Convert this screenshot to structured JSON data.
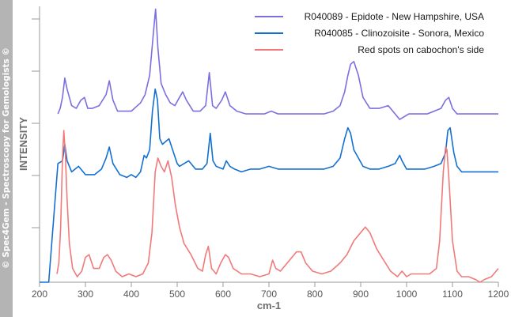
{
  "side_banner": "© Spec4Gem - Spectroscopy for Gemologists ©",
  "chart_data": {
    "type": "line",
    "xlabel": "cm-1",
    "ylabel": "INTENSITY",
    "xlim": [
      200,
      1200
    ],
    "x_ticks": [
      200,
      300,
      400,
      500,
      600,
      700,
      800,
      900,
      1000,
      1100,
      1200
    ],
    "y_ticks_labeled": false,
    "grid": false,
    "legend_position": "top-right",
    "series": [
      {
        "name": "R040089 - Epidote - New Hampshire, USA",
        "color": "#7b6fe0",
        "x": [
          240,
          245,
          250,
          255,
          260,
          270,
          280,
          290,
          298,
          305,
          315,
          330,
          345,
          352,
          360,
          370,
          385,
          400,
          420,
          430,
          440,
          448,
          453,
          458,
          465,
          475,
          485,
          495,
          505,
          512,
          520,
          535,
          550,
          562,
          570,
          577,
          585,
          597,
          605,
          615,
          630,
          650,
          670,
          690,
          705,
          720,
          740,
          760,
          780,
          800,
          820,
          840,
          855,
          865,
          872,
          878,
          885,
          895,
          905,
          920,
          940,
          960,
          975,
          985,
          995,
          1005,
          1015,
          1030,
          1045,
          1060,
          1075,
          1085,
          1092,
          1100,
          1110,
          1120,
          1140,
          1160,
          1180,
          1200
        ],
        "y": [
          0.61,
          0.63,
          0.67,
          0.74,
          0.7,
          0.64,
          0.63,
          0.66,
          0.67,
          0.63,
          0.63,
          0.64,
          0.68,
          0.73,
          0.66,
          0.62,
          0.62,
          0.62,
          0.65,
          0.68,
          0.75,
          0.9,
          0.99,
          0.85,
          0.72,
          0.68,
          0.65,
          0.64,
          0.67,
          0.69,
          0.66,
          0.62,
          0.62,
          0.64,
          0.76,
          0.64,
          0.63,
          0.66,
          0.69,
          0.64,
          0.62,
          0.61,
          0.61,
          0.61,
          0.62,
          0.61,
          0.61,
          0.61,
          0.61,
          0.61,
          0.61,
          0.62,
          0.64,
          0.69,
          0.75,
          0.79,
          0.8,
          0.75,
          0.67,
          0.63,
          0.63,
          0.64,
          0.61,
          0.59,
          0.6,
          0.61,
          0.61,
          0.61,
          0.61,
          0.62,
          0.63,
          0.66,
          0.67,
          0.63,
          0.61,
          0.61,
          0.61,
          0.61,
          0.61,
          0.61
        ]
      },
      {
        "name": "R040085 - Clinozoisite - Sonora, Mexico",
        "color": "#1470d0",
        "x": [
          200,
          210,
          220,
          240,
          250,
          255,
          260,
          270,
          285,
          300,
          320,
          335,
          345,
          352,
          360,
          375,
          390,
          400,
          410,
          420,
          428,
          433,
          440,
          446,
          452,
          457,
          462,
          468,
          475,
          482,
          490,
          500,
          505,
          515,
          525,
          540,
          555,
          565,
          572,
          578,
          585,
          600,
          607,
          615,
          625,
          640,
          660,
          680,
          700,
          720,
          740,
          760,
          780,
          800,
          820,
          840,
          855,
          865,
          872,
          878,
          885,
          895,
          905,
          920,
          940,
          960,
          975,
          985,
          990,
          1000,
          1010,
          1020,
          1040,
          1060,
          1075,
          1085,
          1090,
          1095,
          1103,
          1110,
          1120,
          1140,
          1160,
          1180,
          1200
        ],
        "y": [
          0.0,
          0.0,
          0.0,
          0.43,
          0.44,
          0.5,
          0.44,
          0.4,
          0.42,
          0.39,
          0.39,
          0.41,
          0.45,
          0.49,
          0.43,
          0.39,
          0.38,
          0.39,
          0.38,
          0.4,
          0.46,
          0.45,
          0.48,
          0.62,
          0.7,
          0.66,
          0.52,
          0.5,
          0.51,
          0.52,
          0.48,
          0.43,
          0.42,
          0.43,
          0.44,
          0.41,
          0.41,
          0.43,
          0.54,
          0.44,
          0.42,
          0.41,
          0.44,
          0.42,
          0.41,
          0.4,
          0.41,
          0.41,
          0.42,
          0.41,
          0.41,
          0.41,
          0.41,
          0.41,
          0.41,
          0.42,
          0.45,
          0.52,
          0.56,
          0.54,
          0.48,
          0.45,
          0.42,
          0.41,
          0.41,
          0.42,
          0.43,
          0.46,
          0.44,
          0.41,
          0.41,
          0.41,
          0.41,
          0.42,
          0.43,
          0.47,
          0.55,
          0.56,
          0.47,
          0.42,
          0.4,
          0.4,
          0.4,
          0.4,
          0.4
        ]
      },
      {
        "name": "Red spots on cabochon's side",
        "color": "#f07a7a",
        "x": [
          238,
          242,
          246,
          250,
          253,
          256,
          260,
          265,
          272,
          282,
          292,
          300,
          308,
          318,
          330,
          340,
          348,
          356,
          366,
          380,
          395,
          410,
          425,
          437,
          445,
          452,
          458,
          465,
          472,
          480,
          488,
          496,
          505,
          515,
          530,
          545,
          555,
          562,
          568,
          575,
          585,
          595,
          605,
          612,
          622,
          640,
          660,
          680,
          700,
          708,
          715,
          725,
          745,
          760,
          770,
          780,
          795,
          815,
          835,
          855,
          870,
          885,
          900,
          910,
          920,
          935,
          950,
          965,
          980,
          990,
          1000,
          1010,
          1030,
          1050,
          1065,
          1072,
          1080,
          1085,
          1088,
          1092,
          1100,
          1110,
          1120,
          1135,
          1150,
          1160,
          1170,
          1185,
          1200
        ],
        "y": [
          0.03,
          0.07,
          0.2,
          0.45,
          0.55,
          0.47,
          0.3,
          0.14,
          0.05,
          0.02,
          0.04,
          0.09,
          0.1,
          0.05,
          0.05,
          0.09,
          0.1,
          0.08,
          0.04,
          0.02,
          0.03,
          0.02,
          0.03,
          0.07,
          0.18,
          0.4,
          0.45,
          0.42,
          0.4,
          0.44,
          0.38,
          0.28,
          0.2,
          0.14,
          0.1,
          0.05,
          0.04,
          0.1,
          0.13,
          0.05,
          0.03,
          0.07,
          0.1,
          0.09,
          0.05,
          0.03,
          0.03,
          0.02,
          0.03,
          0.08,
          0.05,
          0.04,
          0.08,
          0.11,
          0.11,
          0.07,
          0.04,
          0.03,
          0.04,
          0.07,
          0.1,
          0.15,
          0.18,
          0.2,
          0.18,
          0.12,
          0.08,
          0.04,
          0.02,
          0.04,
          0.02,
          0.03,
          0.03,
          0.03,
          0.05,
          0.15,
          0.4,
          0.49,
          0.48,
          0.38,
          0.15,
          0.04,
          0.02,
          0.02,
          0.01,
          0.0,
          0.01,
          0.02,
          0.05
        ]
      }
    ]
  }
}
